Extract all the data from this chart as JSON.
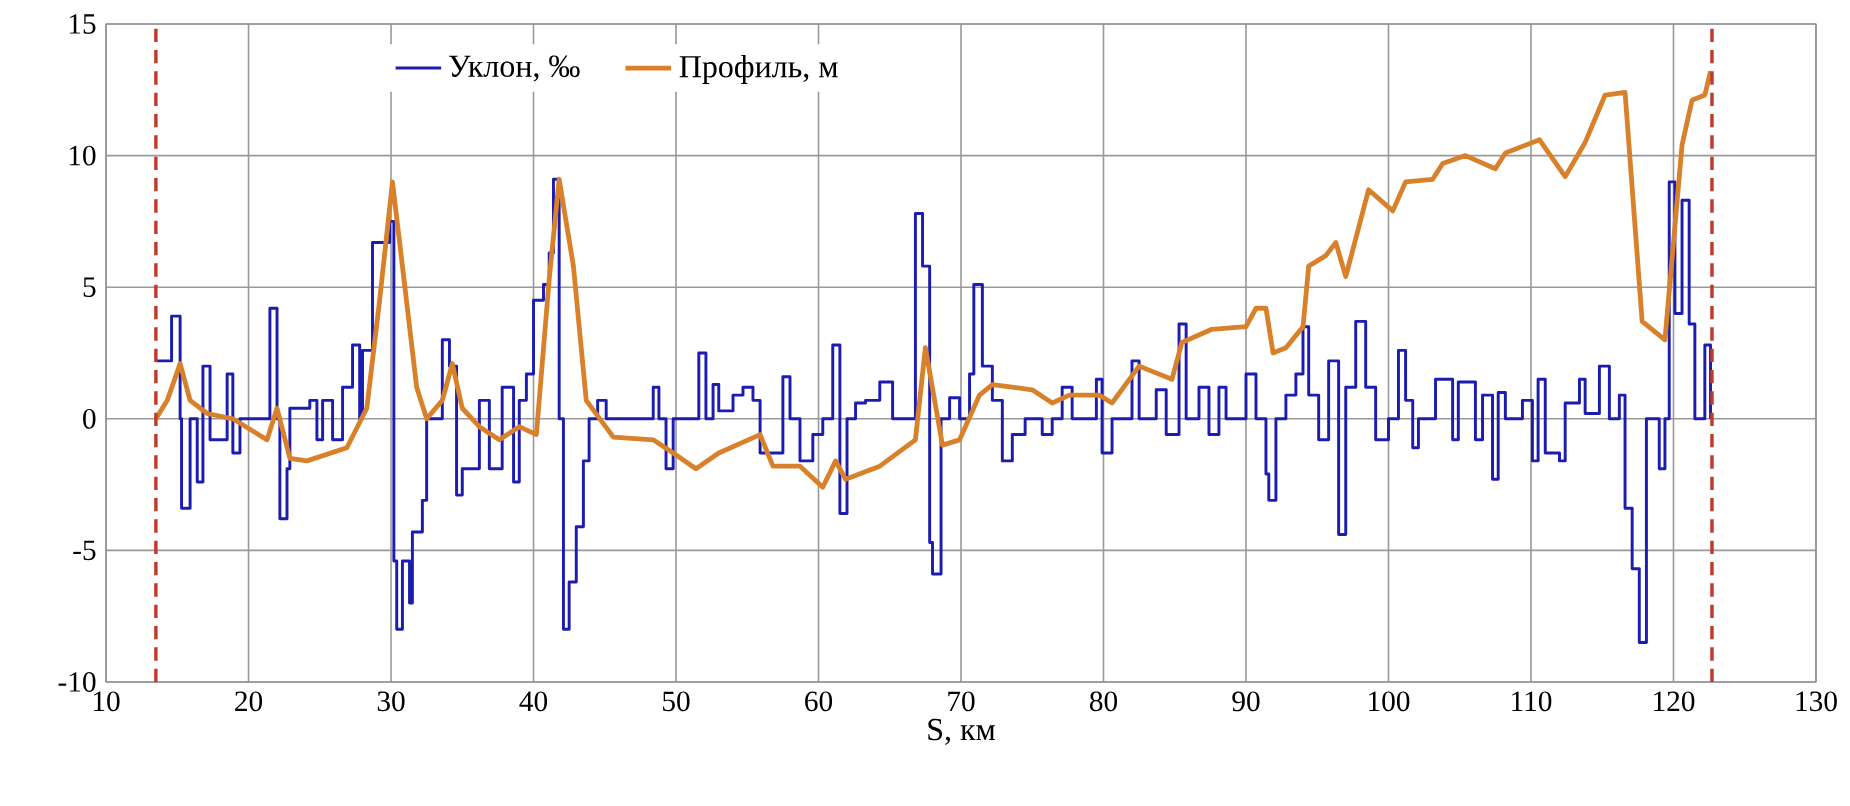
{
  "chart_data": {
    "type": "line",
    "xlabel": "S, км",
    "xlim": [
      10,
      130
    ],
    "ylim": [
      -10,
      15
    ],
    "xticks": [
      10,
      20,
      30,
      40,
      50,
      60,
      70,
      80,
      90,
      100,
      110,
      120,
      130
    ],
    "yticks": [
      -10,
      -5,
      0,
      5,
      10,
      15
    ],
    "grid": true,
    "legend": "top",
    "series": [
      {
        "name": "Уклон, ‰",
        "type": "step",
        "color": "#1c1cb0",
        "x": [
          13.5,
          13.9,
          14.6,
          15.2,
          15.3,
          15.9,
          16.4,
          16.8,
          17.3,
          18.5,
          18.9,
          19.4,
          21.5,
          22.0,
          22.2,
          22.7,
          22.9,
          24.3,
          24.8,
          25.2,
          25.9,
          26.6,
          27.3,
          27.8,
          28.0,
          28.7,
          29.9,
          30.2,
          30.4,
          30.8,
          31.3,
          31.5,
          32.2,
          32.5,
          33.6,
          34.1,
          34.6,
          35.0,
          36.2,
          36.9,
          37.8,
          38.6,
          39.0,
          39.5,
          40.0,
          40.7,
          41.1,
          41.4,
          41.8,
          42.1,
          42.5,
          43.0,
          43.5,
          43.9,
          44.5,
          45.1,
          48.4,
          48.8,
          49.3,
          49.8,
          51.6,
          52.1,
          52.6,
          53.0,
          54.0,
          54.7,
          55.4,
          55.9,
          57.5,
          58.0,
          58.7,
          59.6,
          60.3,
          61.0,
          61.5,
          62.0,
          62.6,
          63.3,
          64.3,
          65.2,
          66.8,
          67.3,
          67.8,
          68.0,
          68.6,
          69.2,
          69.9,
          70.6,
          70.9,
          71.5,
          72.2,
          72.9,
          73.6,
          74.5,
          75.7,
          76.4,
          77.1,
          77.8,
          79.5,
          79.9,
          80.6,
          82.0,
          82.5,
          83.7,
          84.4,
          85.3,
          85.8,
          86.7,
          87.4,
          88.1,
          88.6,
          90.0,
          90.7,
          91.4,
          91.6,
          92.1,
          92.8,
          93.5,
          94.0,
          94.4,
          95.1,
          95.8,
          96.5,
          97.0,
          97.7,
          98.4,
          99.1,
          100.0,
          100.7,
          101.2,
          101.7,
          102.1,
          103.3,
          104.5,
          104.9,
          106.1,
          106.6,
          107.3,
          107.7,
          108.2,
          109.4,
          110.1,
          110.5,
          111.0,
          112.0,
          112.4,
          113.4,
          113.8,
          114.8,
          115.5,
          116.2,
          116.6,
          117.1,
          117.6,
          118.1,
          119.0,
          119.4,
          119.7,
          120.1,
          120.6,
          121.1,
          121.5,
          122.2,
          122.6
        ],
        "values": [
          2.2,
          2.2,
          3.9,
          0,
          -3.4,
          0,
          -2.4,
          2.0,
          -0.8,
          1.7,
          -1.3,
          0,
          4.2,
          0,
          -3.8,
          -1.9,
          0.4,
          0.7,
          -0.8,
          0.7,
          -0.8,
          1.2,
          2.8,
          0,
          2.6,
          6.7,
          7.5,
          -5.4,
          -8.0,
          -5.4,
          -7.0,
          -4.3,
          -3.1,
          0,
          3.0,
          2.0,
          -2.9,
          -1.9,
          0.7,
          -1.9,
          1.2,
          -2.4,
          0.7,
          1.7,
          4.5,
          5.1,
          6.3,
          9.1,
          0,
          -8.0,
          -6.2,
          -4.1,
          -1.6,
          0,
          0.7,
          0,
          1.2,
          0,
          -1.9,
          0,
          2.5,
          0,
          1.3,
          0.3,
          0.9,
          1.2,
          0.7,
          -1.3,
          1.6,
          0,
          -1.6,
          -0.6,
          0,
          2.8,
          -3.6,
          0,
          0.6,
          0.7,
          1.4,
          0,
          7.8,
          5.8,
          -4.7,
          -5.9,
          0,
          0.8,
          0,
          1.7,
          5.1,
          2.0,
          0.7,
          -1.6,
          -0.6,
          0,
          -0.6,
          0,
          1.2,
          0,
          1.5,
          -1.3,
          0,
          2.2,
          0,
          1.1,
          -0.6,
          3.6,
          0,
          1.2,
          -0.6,
          1.2,
          0,
          1.7,
          0,
          -2.1,
          -3.1,
          0,
          0.9,
          1.7,
          3.5,
          0.9,
          -0.8,
          2.2,
          -4.4,
          1.2,
          3.7,
          1.2,
          -0.8,
          0,
          2.6,
          0.7,
          -1.1,
          0,
          1.5,
          -0.8,
          1.4,
          -0.8,
          0.9,
          -2.3,
          1.0,
          0,
          0.7,
          -1.6,
          1.5,
          -1.3,
          -1.6,
          0.6,
          1.5,
          0.2,
          2.0,
          0,
          0.9,
          -3.4,
          -5.7,
          -8.5,
          0,
          -1.9,
          0,
          9.0,
          4.0,
          8.3,
          3.6,
          0,
          2.8,
          0
        ]
      },
      {
        "name": "Профиль, м",
        "color": "#d9802a",
        "x": [
          13.5,
          14.3,
          15.2,
          15.9,
          17.1,
          18.9,
          21.3,
          22.0,
          22.9,
          24.1,
          26.9,
          28.3,
          29.2,
          30.1,
          30.8,
          31.8,
          32.5,
          33.6,
          34.3,
          35.0,
          36.2,
          37.6,
          39.0,
          40.2,
          41.1,
          41.8,
          42.8,
          43.7,
          45.6,
          48.4,
          49.8,
          51.4,
          53.0,
          55.9,
          56.8,
          58.7,
          60.3,
          61.2,
          61.9,
          64.3,
          66.8,
          67.5,
          68.7,
          69.9,
          71.3,
          72.2,
          75.0,
          76.4,
          77.6,
          79.7,
          80.6,
          82.5,
          84.8,
          85.5,
          87.6,
          90.0,
          90.7,
          91.4,
          91.9,
          92.8,
          94.0,
          94.4,
          95.6,
          96.3,
          97.0,
          98.6,
          100.3,
          101.2,
          103.1,
          103.8,
          105.4,
          107.5,
          108.2,
          110.6,
          112.4,
          113.8,
          115.2,
          116.6,
          117.8,
          119.4,
          120.6,
          121.3,
          122.2,
          122.6
        ],
        "values": [
          0,
          0.7,
          2.1,
          0.7,
          0.2,
          0,
          -0.8,
          0.4,
          -1.5,
          -1.6,
          -1.1,
          0.4,
          4.5,
          9.0,
          5.8,
          1.2,
          0,
          0.7,
          2.1,
          0.4,
          -0.3,
          -0.8,
          -0.3,
          -0.6,
          5.3,
          9.1,
          5.8,
          0.7,
          -0.7,
          -0.8,
          -1.3,
          -1.9,
          -1.3,
          -0.6,
          -1.8,
          -1.8,
          -2.6,
          -1.6,
          -2.3,
          -1.8,
          -0.8,
          2.7,
          -1.0,
          -0.8,
          0.9,
          1.3,
          1.1,
          0.6,
          0.9,
          0.9,
          0.6,
          2.0,
          1.5,
          2.9,
          3.4,
          3.5,
          4.2,
          4.2,
          2.5,
          2.7,
          3.5,
          5.8,
          6.2,
          6.7,
          5.4,
          8.7,
          7.9,
          9.0,
          9.1,
          9.7,
          10.0,
          9.5,
          10.1,
          10.6,
          9.2,
          10.5,
          12.3,
          12.4,
          3.7,
          3.0,
          10.4,
          12.1,
          12.3,
          13.2
        ]
      }
    ],
    "ref_lines": [
      {
        "axis": "x",
        "value": 13.5,
        "color": "#c0392b",
        "line_style": "dashed"
      },
      {
        "axis": "x",
        "value": 122.7,
        "color": "#c0392b",
        "line_style": "dashed"
      }
    ]
  }
}
